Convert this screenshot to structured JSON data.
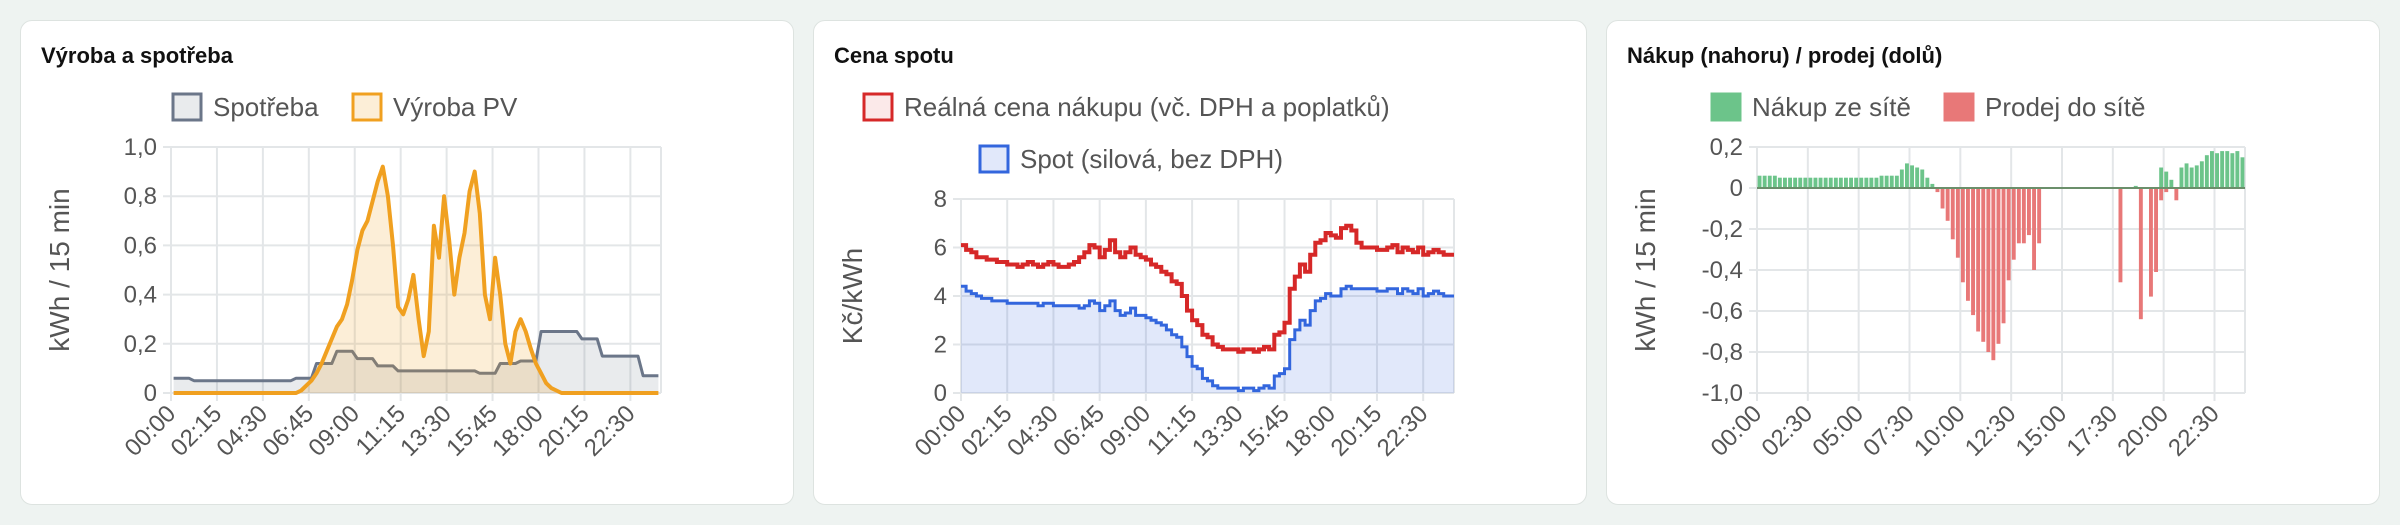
{
  "colors": {
    "consumption": "#6b7689",
    "consumption_fill": "rgba(107,118,137,0.15)",
    "pv": "#f0a020",
    "pv_fill": "rgba(240,160,32,0.18)",
    "real_price": "#d62828",
    "spot": "#3366dd",
    "spot_fill": "rgba(51,102,221,0.15)",
    "buy": "#6cc48a",
    "sell": "#e87878",
    "grid": "#e3e6e8"
  },
  "charts": [
    {
      "id": "production",
      "title": "Výroba a spotřeba",
      "chart_data": {
        "type": "line",
        "title": "Výroba a spotřeba",
        "ylabel": "kWh / 15 min",
        "xlabel": "",
        "ylim": [
          0,
          1.0
        ],
        "y_ticks": [
          "0",
          "0,2",
          "0,4",
          "0,6",
          "0,8",
          "1,0"
        ],
        "x_ticks": [
          "00:00",
          "02:15",
          "04:30",
          "06:45",
          "09:00",
          "11:15",
          "13:30",
          "15:45",
          "18:00",
          "20:15",
          "22:30"
        ],
        "interval_minutes": 15,
        "grid": true,
        "legend_position": "top",
        "series": [
          {
            "name": "Spotřeba",
            "style": "line-fill",
            "values": [
              0.06,
              0.06,
              0.06,
              0.06,
              0.05,
              0.05,
              0.05,
              0.05,
              0.05,
              0.05,
              0.05,
              0.05,
              0.05,
              0.05,
              0.05,
              0.05,
              0.05,
              0.05,
              0.05,
              0.05,
              0.05,
              0.05,
              0.05,
              0.05,
              0.06,
              0.06,
              0.06,
              0.06,
              0.12,
              0.12,
              0.12,
              0.12,
              0.17,
              0.17,
              0.17,
              0.17,
              0.14,
              0.14,
              0.14,
              0.14,
              0.11,
              0.11,
              0.11,
              0.11,
              0.09,
              0.09,
              0.09,
              0.09,
              0.09,
              0.09,
              0.09,
              0.09,
              0.09,
              0.09,
              0.09,
              0.09,
              0.09,
              0.09,
              0.09,
              0.09,
              0.08,
              0.08,
              0.08,
              0.08,
              0.12,
              0.12,
              0.12,
              0.12,
              0.13,
              0.13,
              0.13,
              0.13,
              0.25,
              0.25,
              0.25,
              0.25,
              0.25,
              0.25,
              0.25,
              0.25,
              0.22,
              0.22,
              0.22,
              0.22,
              0.15,
              0.15,
              0.15,
              0.15,
              0.15,
              0.15,
              0.15,
              0.15,
              0.07,
              0.07,
              0.07,
              0.07
            ]
          },
          {
            "name": "Výroba PV",
            "style": "line-fill",
            "values": [
              0,
              0,
              0,
              0,
              0,
              0,
              0,
              0,
              0,
              0,
              0,
              0,
              0,
              0,
              0,
              0,
              0,
              0,
              0,
              0,
              0,
              0,
              0,
              0,
              0,
              0.01,
              0.03,
              0.05,
              0.08,
              0.12,
              0.17,
              0.22,
              0.27,
              0.3,
              0.36,
              0.46,
              0.58,
              0.66,
              0.7,
              0.78,
              0.86,
              0.92,
              0.8,
              0.6,
              0.35,
              0.32,
              0.38,
              0.48,
              0.3,
              0.15,
              0.25,
              0.68,
              0.55,
              0.8,
              0.62,
              0.4,
              0.55,
              0.65,
              0.82,
              0.9,
              0.73,
              0.4,
              0.3,
              0.55,
              0.4,
              0.2,
              0.12,
              0.25,
              0.3,
              0.25,
              0.18,
              0.12,
              0.08,
              0.04,
              0.02,
              0.01,
              0,
              0,
              0,
              0,
              0,
              0,
              0,
              0,
              0,
              0,
              0,
              0,
              0,
              0,
              0,
              0,
              0,
              0,
              0,
              0
            ]
          }
        ]
      }
    },
    {
      "id": "spot",
      "title": "Cena spotu",
      "chart_data": {
        "type": "line",
        "title": "Cena spotu",
        "ylabel": "Kč/kWh",
        "xlabel": "",
        "ylim": [
          0,
          8
        ],
        "y_ticks": [
          "0",
          "2",
          "4",
          "6",
          "8"
        ],
        "x_ticks": [
          "00:00",
          "02:15",
          "04:30",
          "06:45",
          "09:00",
          "11:15",
          "13:30",
          "15:45",
          "18:00",
          "20:15",
          "22:30"
        ],
        "interval_minutes": 15,
        "grid": true,
        "legend_position": "top",
        "series": [
          {
            "name": "Reálná cena nákupu (vč. DPH a poplatků)",
            "style": "step",
            "values": [
              6.1,
              5.9,
              5.8,
              5.6,
              5.6,
              5.5,
              5.5,
              5.4,
              5.4,
              5.3,
              5.3,
              5.2,
              5.3,
              5.4,
              5.3,
              5.2,
              5.3,
              5.4,
              5.3,
              5.2,
              5.2,
              5.3,
              5.4,
              5.6,
              5.8,
              6.1,
              6.0,
              5.6,
              5.9,
              6.3,
              5.8,
              5.6,
              5.8,
              6.0,
              5.7,
              5.6,
              5.5,
              5.3,
              5.2,
              5.0,
              4.9,
              4.6,
              4.5,
              4.0,
              3.4,
              3.0,
              2.8,
              2.4,
              2.3,
              2.0,
              1.9,
              1.8,
              1.8,
              1.8,
              1.7,
              1.8,
              1.8,
              1.7,
              1.8,
              1.9,
              1.8,
              2.4,
              2.5,
              2.9,
              4.3,
              4.8,
              5.3,
              5.0,
              5.7,
              6.2,
              6.3,
              6.6,
              6.5,
              6.4,
              6.8,
              6.9,
              6.7,
              6.2,
              6.0,
              6.0,
              6.0,
              5.9,
              5.9,
              6.0,
              6.1,
              5.8,
              6.0,
              5.9,
              5.8,
              6.0,
              5.7,
              5.8,
              5.9,
              5.8,
              5.7,
              5.7
            ]
          },
          {
            "name": "Spot (silová, bez DPH)",
            "style": "step-fill",
            "values": [
              4.4,
              4.2,
              4.1,
              4.0,
              3.9,
              3.9,
              3.8,
              3.8,
              3.8,
              3.7,
              3.7,
              3.7,
              3.7,
              3.7,
              3.7,
              3.6,
              3.7,
              3.7,
              3.6,
              3.6,
              3.6,
              3.6,
              3.6,
              3.5,
              3.6,
              3.8,
              3.7,
              3.4,
              3.6,
              3.8,
              3.4,
              3.2,
              3.3,
              3.5,
              3.2,
              3.2,
              3.1,
              3.0,
              2.9,
              2.8,
              2.6,
              2.4,
              2.3,
              1.9,
              1.5,
              1.1,
              1.0,
              0.6,
              0.5,
              0.3,
              0.2,
              0.2,
              0.2,
              0.2,
              0.1,
              0.2,
              0.2,
              0.1,
              0.2,
              0.3,
              0.2,
              0.7,
              0.8,
              1.0,
              2.2,
              2.6,
              3.0,
              2.8,
              3.4,
              3.8,
              3.9,
              4.1,
              4.0,
              4.0,
              4.3,
              4.4,
              4.3,
              4.3,
              4.3,
              4.3,
              4.3,
              4.2,
              4.2,
              4.3,
              4.3,
              4.1,
              4.3,
              4.2,
              4.1,
              4.3,
              4.0,
              4.1,
              4.2,
              4.1,
              4.0,
              4.0
            ]
          }
        ]
      }
    },
    {
      "id": "grid",
      "title": "Nákup (nahoru) / prodej (dolů)",
      "chart_data": {
        "type": "bar",
        "title": "Nákup (nahoru) / prodej (dolů)",
        "ylabel": "kWh / 15 min",
        "xlabel": "",
        "ylim": [
          -1.0,
          0.2
        ],
        "y_ticks": [
          "-1,0",
          "-0,8",
          "-0,6",
          "-0,4",
          "-0,2",
          "0",
          "0,2"
        ],
        "x_ticks": [
          "00:00",
          "02:30",
          "05:00",
          "07:30",
          "10:00",
          "12:30",
          "15:00",
          "17:30",
          "20:00",
          "22:30"
        ],
        "interval_minutes": 15,
        "grid": true,
        "legend_position": "top",
        "series": [
          {
            "name": "Nákup ze sítě",
            "values": [
              0.06,
              0.06,
              0.06,
              0.06,
              0.05,
              0.05,
              0.05,
              0.05,
              0.05,
              0.05,
              0.05,
              0.05,
              0.05,
              0.05,
              0.05,
              0.05,
              0.05,
              0.05,
              0.05,
              0.05,
              0.05,
              0.05,
              0.05,
              0.05,
              0.06,
              0.06,
              0.06,
              0.06,
              0.09,
              0.12,
              0.11,
              0.1,
              0.09,
              0.05,
              0.02,
              0,
              0,
              0,
              0,
              0,
              0,
              0,
              0,
              0,
              0,
              0,
              0,
              0,
              0,
              0,
              0,
              0,
              0,
              0,
              0,
              0,
              0,
              0,
              0,
              0,
              0,
              0,
              0,
              0,
              0,
              0,
              0,
              0,
              0,
              0,
              0,
              0,
              0,
              0,
              0.01,
              0,
              0,
              0,
              0,
              0.1,
              0.08,
              0.04,
              0,
              0.1,
              0.12,
              0.1,
              0.11,
              0.13,
              0.16,
              0.18,
              0.17,
              0.18,
              0.18,
              0.17,
              0.18,
              0.15
            ]
          },
          {
            "name": "Prodej do sítě",
            "values": [
              0,
              0,
              0,
              0,
              0,
              0,
              0,
              0,
              0,
              0,
              0,
              0,
              0,
              0,
              0,
              0,
              0,
              0,
              0,
              0,
              0,
              0,
              0,
              0,
              0,
              0,
              0,
              0,
              0,
              0,
              0,
              0,
              0,
              0,
              0,
              -0.02,
              -0.1,
              -0.16,
              -0.25,
              -0.34,
              -0.46,
              -0.55,
              -0.62,
              -0.7,
              -0.75,
              -0.8,
              -0.84,
              -0.76,
              -0.66,
              -0.45,
              -0.35,
              -0.27,
              -0.27,
              -0.23,
              -0.4,
              -0.27,
              0,
              0,
              0,
              0,
              0,
              0,
              0,
              0,
              0,
              0,
              0,
              0,
              0,
              0,
              0,
              -0.46,
              0,
              0,
              0,
              -0.64,
              0,
              -0.53,
              -0.41,
              -0.06,
              -0.02,
              0,
              -0.06,
              0,
              0,
              0,
              0,
              0,
              0,
              0,
              0,
              0,
              0,
              0,
              0,
              0
            ]
          }
        ]
      }
    }
  ]
}
